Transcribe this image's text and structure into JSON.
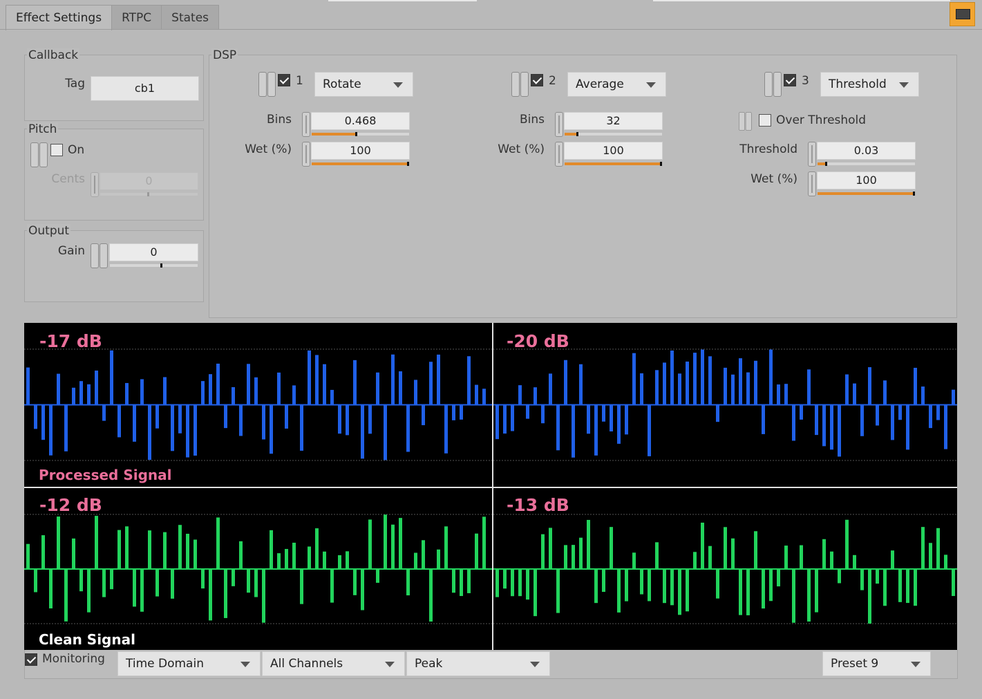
{
  "tabs": [
    {
      "label": "Effect Settings",
      "active": true
    },
    {
      "label": "RTPC",
      "active": false
    },
    {
      "label": "States",
      "active": false
    }
  ],
  "accent_color": "#f2a531",
  "callback": {
    "title": "Callback",
    "tag_label": "Tag",
    "tag_value": "cb1"
  },
  "pitch": {
    "title": "Pitch",
    "on_label": "On",
    "on_checked": false,
    "cents_label": "Cents",
    "cents_value": "0",
    "cents_level": 0.5
  },
  "output": {
    "title": "Output",
    "gain_label": "Gain",
    "gain_value": "0",
    "gain_level": 0.6
  },
  "dsp": {
    "title": "DSP",
    "slots": [
      {
        "index": "1",
        "enabled": true,
        "effect": "Rotate",
        "bins_label": "Bins",
        "bins_value": "0.468",
        "bins_level": 0.47,
        "wet_label": "Wet (%)",
        "wet_value": "100",
        "wet_level": 1.0
      },
      {
        "index": "2",
        "enabled": true,
        "effect": "Average",
        "bins_label": "Bins",
        "bins_value": "32",
        "bins_level": 0.14,
        "wet_label": "Wet (%)",
        "wet_value": "100",
        "wet_level": 1.0
      },
      {
        "index": "3",
        "enabled": true,
        "effect": "Threshold",
        "over_label": "Over Threshold",
        "over_checked": false,
        "threshold_label": "Threshold",
        "threshold_value": "0.03",
        "threshold_level": 0.1,
        "wet_label": "Wet (%)",
        "wet_value": "100",
        "wet_level": 1.0
      }
    ]
  },
  "meters": {
    "processed_label": "Processed Signal",
    "clean_label": "Clean Signal",
    "processed_db": [
      "-17 dB",
      "-20 dB"
    ],
    "clean_db": [
      "-12 dB",
      "-13 dB"
    ],
    "processed_color": "#2060e8",
    "clean_color": "#22d45c",
    "label_color": "#ea6f9a"
  },
  "bottom": {
    "monitoring_label": "Monitoring",
    "monitoring_checked": true,
    "view_mode": "Time Domain",
    "channels": "All Channels",
    "meter_mode": "Peak",
    "preset": "Preset 9"
  }
}
